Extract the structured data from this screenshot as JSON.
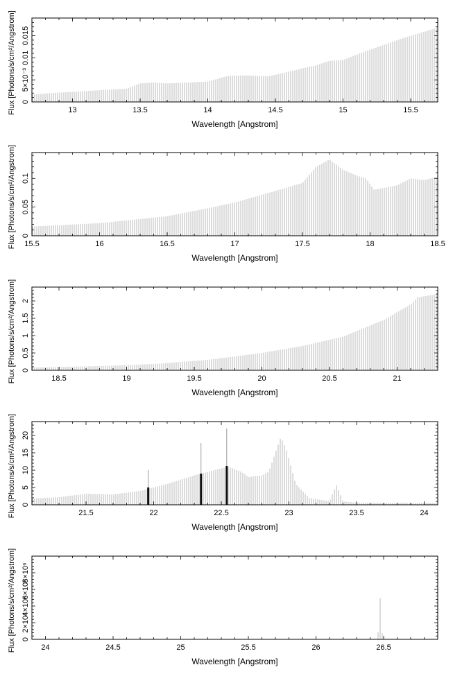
{
  "chart_data": [
    {
      "type": "bar",
      "xlabel": "Wavelength [Angstrom]",
      "ylabel": "Flux [Photons/s/cm²/Angstrom]",
      "xlim": [
        12.7,
        15.7
      ],
      "ylim": [
        0,
        0.019
      ],
      "xticks": [
        {
          "v": 13,
          "label": "13"
        },
        {
          "v": 13.5,
          "label": "13.5"
        },
        {
          "v": 14,
          "label": "14"
        },
        {
          "v": 14.5,
          "label": "14.5"
        },
        {
          "v": 15,
          "label": "15"
        },
        {
          "v": 15.5,
          "label": "15.5"
        }
      ],
      "yticks": [
        {
          "v": 0,
          "label": "0"
        },
        {
          "v": 0.005,
          "label": "5×10⁻³"
        },
        {
          "v": 0.01,
          "label": "0.01"
        },
        {
          "v": 0.015,
          "label": "0.015"
        }
      ],
      "envelope": [
        [
          12.7,
          0.0017
        ],
        [
          13.0,
          0.0023
        ],
        [
          13.4,
          0.003
        ],
        [
          13.5,
          0.0042
        ],
        [
          13.6,
          0.0044
        ],
        [
          13.7,
          0.0042
        ],
        [
          14.0,
          0.0046
        ],
        [
          14.15,
          0.0059
        ],
        [
          14.3,
          0.006
        ],
        [
          14.45,
          0.0058
        ],
        [
          14.55,
          0.0065
        ],
        [
          14.8,
          0.0083
        ],
        [
          14.9,
          0.0093
        ],
        [
          15.0,
          0.0095
        ],
        [
          15.15,
          0.0113
        ],
        [
          15.3,
          0.0129
        ],
        [
          15.45,
          0.0145
        ],
        [
          15.6,
          0.0159
        ],
        [
          15.7,
          0.0168
        ]
      ]
    },
    {
      "type": "bar",
      "xlabel": "Wavelength [Angstrom]",
      "ylabel": "Flux [Photons/s/cm²/Angstrom]",
      "xlim": [
        15.5,
        18.5
      ],
      "ylim": [
        0,
        0.145
      ],
      "xticks": [
        {
          "v": 15.5,
          "label": "15.5"
        },
        {
          "v": 16,
          "label": "16"
        },
        {
          "v": 16.5,
          "label": "16.5"
        },
        {
          "v": 17,
          "label": "17"
        },
        {
          "v": 17.5,
          "label": "17.5"
        },
        {
          "v": 18,
          "label": "18"
        },
        {
          "v": 18.5,
          "label": "18.5"
        }
      ],
      "yticks": [
        {
          "v": 0,
          "label": "0"
        },
        {
          "v": 0.05,
          "label": "0.05"
        },
        {
          "v": 0.1,
          "label": "0.1"
        }
      ],
      "envelope": [
        [
          15.5,
          0.016
        ],
        [
          16.0,
          0.022
        ],
        [
          16.5,
          0.034
        ],
        [
          16.8,
          0.048
        ],
        [
          17.0,
          0.058
        ],
        [
          17.3,
          0.078
        ],
        [
          17.5,
          0.092
        ],
        [
          17.6,
          0.12
        ],
        [
          17.7,
          0.133
        ],
        [
          17.8,
          0.115
        ],
        [
          17.9,
          0.105
        ],
        [
          17.97,
          0.1
        ],
        [
          18.03,
          0.08
        ],
        [
          18.2,
          0.088
        ],
        [
          18.3,
          0.1
        ],
        [
          18.4,
          0.097
        ],
        [
          18.5,
          0.103
        ]
      ]
    },
    {
      "type": "bar",
      "xlabel": "Wavelength [Angstrom]",
      "ylabel": "Flux [Photons/s/cm²/Angstrom]",
      "xlim": [
        18.3,
        21.3
      ],
      "ylim": [
        0,
        2.4
      ],
      "xticks": [
        {
          "v": 18.5,
          "label": "18.5"
        },
        {
          "v": 19,
          "label": "19"
        },
        {
          "v": 19.5,
          "label": "19.5"
        },
        {
          "v": 20,
          "label": "20"
        },
        {
          "v": 20.5,
          "label": "20.5"
        },
        {
          "v": 21,
          "label": "21"
        }
      ],
      "yticks": [
        {
          "v": 0,
          "label": "0"
        },
        {
          "v": 0.5,
          "label": "0.5"
        },
        {
          "v": 1,
          "label": "1"
        },
        {
          "v": 1.5,
          "label": "1.5"
        },
        {
          "v": 2,
          "label": "2"
        }
      ],
      "envelope": [
        [
          18.3,
          0.08
        ],
        [
          18.8,
          0.12
        ],
        [
          19.2,
          0.18
        ],
        [
          19.6,
          0.3
        ],
        [
          20.0,
          0.5
        ],
        [
          20.3,
          0.7
        ],
        [
          20.6,
          0.97
        ],
        [
          20.9,
          1.45
        ],
        [
          21.1,
          1.9
        ],
        [
          21.15,
          2.1
        ],
        [
          21.3,
          2.2
        ]
      ]
    },
    {
      "type": "bar",
      "xlabel": "Wavelength [Angstrom]",
      "ylabel": "Flux [Photons/s/cm²/Angstrom]",
      "xlim": [
        21.1,
        24.1
      ],
      "ylim": [
        0,
        24
      ],
      "xticks": [
        {
          "v": 21.5,
          "label": "21.5"
        },
        {
          "v": 22,
          "label": "22"
        },
        {
          "v": 22.5,
          "label": "22.5"
        },
        {
          "v": 23,
          "label": "23"
        },
        {
          "v": 23.5,
          "label": "23.5"
        },
        {
          "v": 24,
          "label": "24"
        }
      ],
      "yticks": [
        {
          "v": 0,
          "label": "0"
        },
        {
          "v": 5,
          "label": "5"
        },
        {
          "v": 10,
          "label": "10"
        },
        {
          "v": 15,
          "label": "15"
        },
        {
          "v": 20,
          "label": "20"
        }
      ],
      "envelope": [
        [
          21.1,
          1.8
        ],
        [
          21.3,
          2.2
        ],
        [
          21.5,
          3.2
        ],
        [
          21.7,
          3.0
        ],
        [
          21.9,
          4.0
        ],
        [
          22.1,
          6.0
        ],
        [
          22.3,
          8.5
        ],
        [
          22.5,
          10.5
        ],
        [
          22.55,
          11.0
        ],
        [
          22.65,
          9.5
        ],
        [
          22.7,
          8.0
        ],
        [
          22.8,
          8.5
        ],
        [
          22.85,
          9.5
        ],
        [
          22.9,
          15.0
        ],
        [
          22.94,
          19.5
        ],
        [
          22.98,
          16.0
        ],
        [
          23.05,
          6.0
        ],
        [
          23.15,
          2.0
        ],
        [
          23.3,
          1.0
        ],
        [
          23.35,
          5.8
        ],
        [
          23.4,
          1.0
        ],
        [
          23.5,
          0.6
        ],
        [
          24.1,
          0.6
        ]
      ],
      "spikes": [
        {
          "x": 21.96,
          "y": 10.0,
          "base": 5.0
        },
        {
          "x": 22.35,
          "y": 17.8,
          "base": 9.0
        },
        {
          "x": 22.54,
          "y": 22.0,
          "base": 11.2
        }
      ]
    },
    {
      "type": "bar",
      "xlabel": "Wavelength [Angstrom]",
      "ylabel": "Flux [Photons/s/cm²/Angstrom]",
      "xlim": [
        23.9,
        26.9
      ],
      "ylim": [
        0,
        10
      ],
      "xticks": [
        {
          "v": 24,
          "label": "24"
        },
        {
          "v": 24.5,
          "label": "24.5"
        },
        {
          "v": 25,
          "label": "25"
        },
        {
          "v": 25.5,
          "label": "25.5"
        },
        {
          "v": 26,
          "label": "26"
        },
        {
          "v": 26.5,
          "label": "26.5"
        }
      ],
      "yticks": [
        {
          "v": 0,
          "label": "0"
        },
        {
          "v": 2,
          "label": "2×10⁶"
        },
        {
          "v": 4,
          "label": "4×10⁶"
        },
        {
          "v": 6,
          "label": "6×10⁶"
        },
        {
          "v": 8,
          "label": "8×10⁶"
        }
      ],
      "envelope": [
        [
          23.9,
          0
        ],
        [
          26.45,
          0
        ],
        [
          26.46,
          1.0
        ],
        [
          26.47,
          2.0
        ],
        [
          26.48,
          8.8
        ],
        [
          26.49,
          0.5
        ],
        [
          26.5,
          0
        ],
        [
          26.9,
          0
        ]
      ]
    }
  ]
}
